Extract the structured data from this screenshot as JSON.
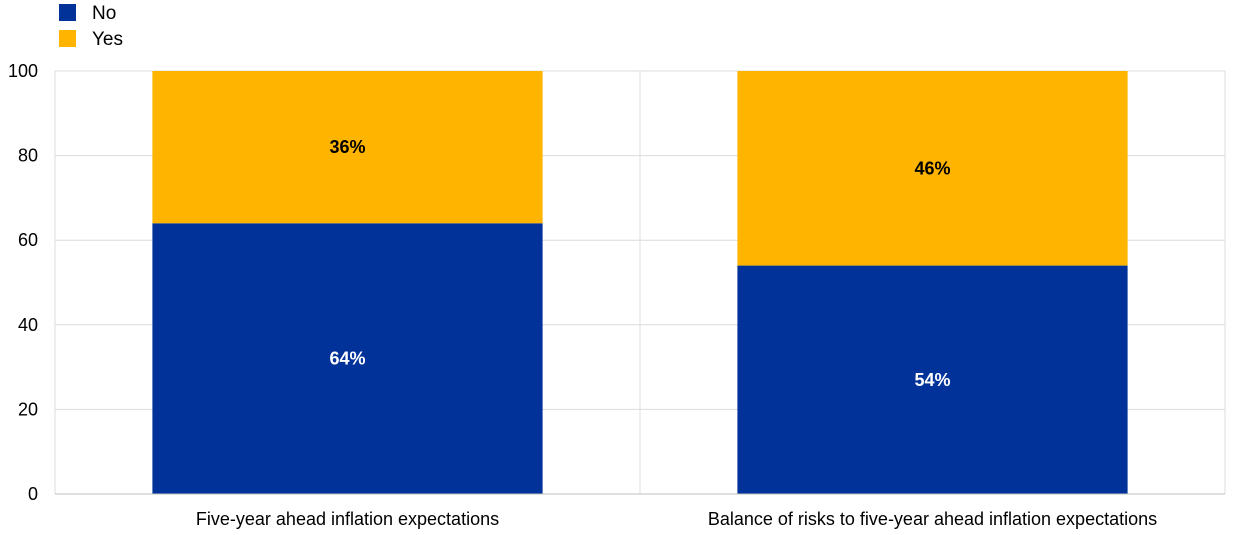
{
  "chart_data": {
    "type": "bar",
    "stacked": true,
    "categories": [
      "Five-year ahead inflation expectations",
      "Balance of risks to five-year ahead inflation expectations"
    ],
    "series": [
      {
        "name": "No",
        "color": "#003299",
        "values": [
          64,
          54
        ],
        "labels": [
          "64%",
          "54%"
        ],
        "label_color": "#ffffff"
      },
      {
        "name": "Yes",
        "color": "#FFB400",
        "values": [
          36,
          46
        ],
        "labels": [
          "36%",
          "46%"
        ],
        "label_color": "#000000"
      }
    ],
    "ylim": [
      0,
      100
    ],
    "yticks": [
      0,
      20,
      40,
      60,
      80,
      100
    ],
    "ytick_labels": [
      "0",
      "20",
      "40",
      "60",
      "80",
      "100"
    ],
    "grid": true,
    "legend": "top-left",
    "title": "",
    "xlabel": "",
    "ylabel": ""
  }
}
